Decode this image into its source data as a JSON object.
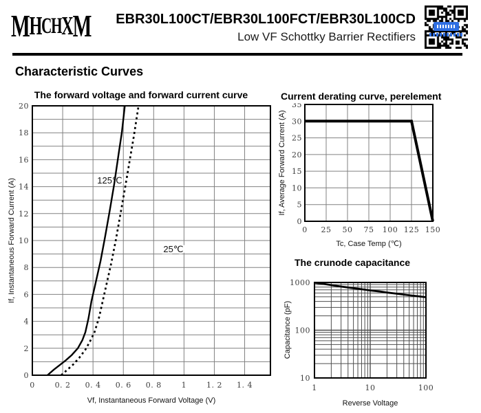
{
  "header": {
    "logo_text": "MHCHXM",
    "title": "EBR30L100CT/EBR30L100FCT/EBR30L100CD",
    "subtitle": "Low VF Schottky Barrier Rectifiers",
    "qr_icon": "qr-code"
  },
  "section_title": "Characteristic Curves",
  "colors": {
    "text": "#000000",
    "grid": "#808080",
    "log_grid": "#4d4d4d",
    "curve": "#000000",
    "qr_badge_blue": "#2f6fe3"
  },
  "chart_data": [
    {
      "id": "fv_curve",
      "type": "line",
      "title": "The forward voltage and forward current curve",
      "xlabel": "Vf, Instantaneous Forward Voltage (V)",
      "ylabel": "If, Instantaneous Forward Current (A)",
      "xscale": "linear",
      "yscale": "linear",
      "xlim": [
        0,
        1.57
      ],
      "ylim": [
        0,
        20
      ],
      "x_grid_step": 0.2,
      "y_grid_step": 1,
      "x_ticks": [
        0,
        0.2,
        0.4,
        0.6,
        0.8,
        1,
        1.2,
        1.4
      ],
      "x_tick_labels": [
        "0",
        "0. 2",
        "0. 4",
        "0. 6",
        "0. 8",
        "1",
        "1. 2",
        "1. 4"
      ],
      "y_ticks": [
        0,
        2,
        4,
        6,
        8,
        10,
        12,
        14,
        16,
        18,
        20
      ],
      "y_tick_labels": [
        "0",
        "2",
        "4",
        "6",
        "8",
        "10",
        "12",
        "14",
        "16",
        "18",
        "20"
      ],
      "series": [
        {
          "name": "125℃",
          "style": "solid",
          "width": 2.4,
          "points": [
            [
              0.1,
              0
            ],
            [
              0.14,
              0.4
            ],
            [
              0.18,
              0.75
            ],
            [
              0.22,
              1.1
            ],
            [
              0.26,
              1.5
            ],
            [
              0.3,
              2
            ],
            [
              0.33,
              2.6
            ],
            [
              0.35,
              3.2
            ],
            [
              0.37,
              4.2
            ],
            [
              0.39,
              5.5
            ],
            [
              0.41,
              6.5
            ],
            [
              0.43,
              7.5
            ],
            [
              0.45,
              8.5
            ],
            [
              0.48,
              10.3
            ],
            [
              0.51,
              12.2
            ],
            [
              0.54,
              14.2
            ],
            [
              0.57,
              16.5
            ],
            [
              0.59,
              18
            ],
            [
              0.61,
              20
            ]
          ]
        },
        {
          "name": "25℃",
          "style": "dashed",
          "width": 2.7,
          "points": [
            [
              0.19,
              0
            ],
            [
              0.23,
              0.4
            ],
            [
              0.27,
              0.8
            ],
            [
              0.31,
              1.3
            ],
            [
              0.35,
              1.9
            ],
            [
              0.38,
              2.5
            ],
            [
              0.41,
              3.2
            ],
            [
              0.44,
              4.3
            ],
            [
              0.46,
              5.3
            ],
            [
              0.49,
              6.8
            ],
            [
              0.52,
              8.3
            ],
            [
              0.55,
              10
            ],
            [
              0.58,
              11.9
            ],
            [
              0.61,
              13.8
            ],
            [
              0.64,
              15.8
            ],
            [
              0.67,
              17.8
            ],
            [
              0.7,
              20
            ]
          ]
        }
      ],
      "annotations": [
        {
          "text": "125℃",
          "x": 0.51,
          "y": 14.5
        },
        {
          "text": "25℃",
          "x": 0.93,
          "y": 9.4
        }
      ]
    },
    {
      "id": "derating",
      "type": "line",
      "title": "Current derating curve, perelement",
      "xlabel": "Tc, Case Temp (℃)",
      "ylabel": "If, Average Forward Current (A)",
      "xscale": "linear",
      "yscale": "linear",
      "xlim": [
        0,
        150
      ],
      "ylim": [
        0,
        35
      ],
      "x_grid_step": 25,
      "y_grid_step": 5,
      "x_ticks": [
        0,
        25,
        50,
        75,
        100,
        125,
        150
      ],
      "x_tick_labels": [
        "0",
        "25",
        "50",
        "75",
        "100",
        "125",
        "150"
      ],
      "y_ticks": [
        0,
        5,
        10,
        15,
        20,
        25,
        30,
        35
      ],
      "y_tick_labels": [
        "0",
        "5",
        "10",
        "15",
        "20",
        "25",
        "30",
        "35"
      ],
      "series": [
        {
          "name": "derating",
          "style": "solid",
          "width": 4,
          "points": [
            [
              0,
              30
            ],
            [
              125,
              30
            ],
            [
              150,
              0
            ]
          ]
        }
      ],
      "annotations": []
    },
    {
      "id": "capacitance",
      "type": "line",
      "title": "The crunode capacitance",
      "xlabel": "Reverse Voltage",
      "ylabel": "Capacitance (pF)",
      "xscale": "log",
      "yscale": "log",
      "xlim": [
        1,
        100
      ],
      "ylim": [
        10,
        1000
      ],
      "x_ticks": [
        1,
        10,
        100
      ],
      "x_tick_labels": [
        "1",
        "10",
        "100"
      ],
      "y_ticks": [
        10,
        100,
        1000
      ],
      "y_tick_labels": [
        "10",
        "100",
        "1000"
      ],
      "series": [
        {
          "name": "capacitance",
          "style": "solid",
          "width": 2.8,
          "points": [
            [
              1,
              990
            ],
            [
              1.5,
              930
            ],
            [
              2,
              880
            ],
            [
              3,
              820
            ],
            [
              4,
              785
            ],
            [
              5,
              760
            ],
            [
              7,
              720
            ],
            [
              10,
              680
            ],
            [
              15,
              645
            ],
            [
              20,
              615
            ],
            [
              30,
              580
            ],
            [
              50,
              540
            ],
            [
              70,
              515
            ],
            [
              100,
              490
            ]
          ]
        }
      ],
      "annotations": []
    }
  ]
}
